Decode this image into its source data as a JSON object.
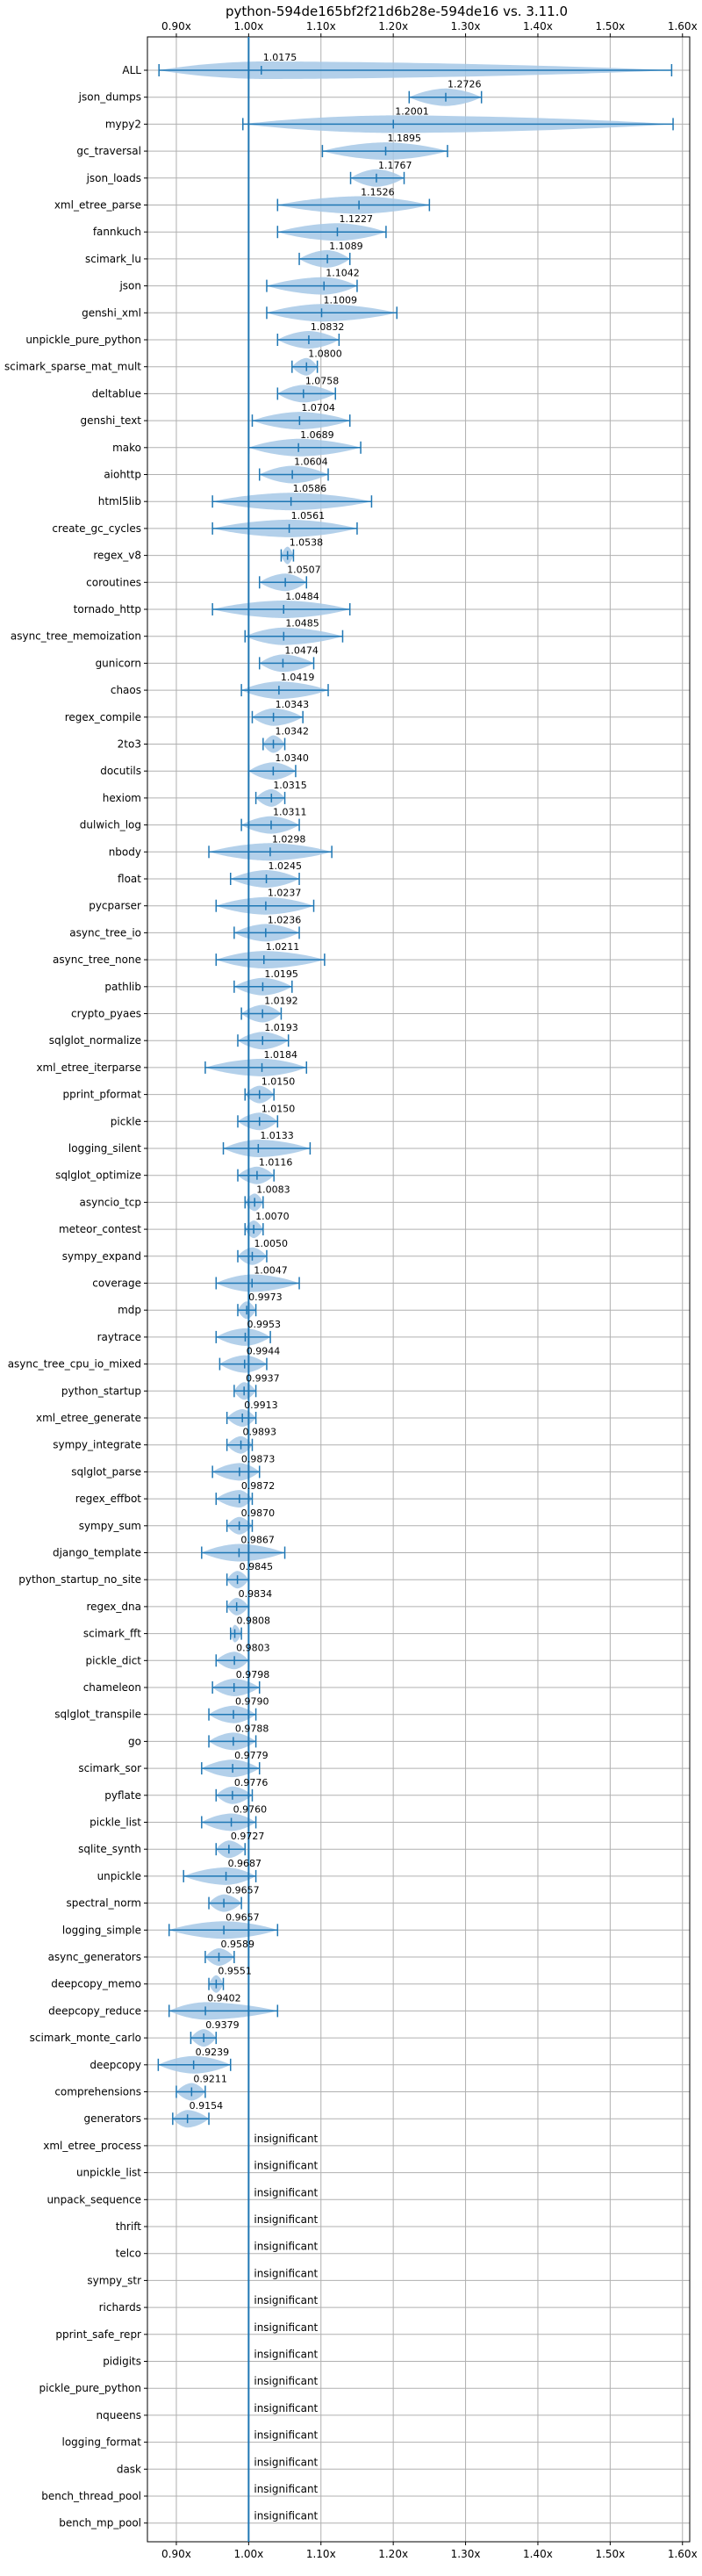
{
  "chart_data": {
    "type": "violin",
    "title": "python-594de165bf2f21d6b28e-594de16 vs. 3.11.0",
    "xlabel": "",
    "ylabel": "",
    "xlim": [
      0.86,
      1.61
    ],
    "x_ticks": [
      0.9,
      1.0,
      1.1,
      1.2,
      1.3,
      1.4,
      1.5,
      1.6
    ],
    "x_tick_labels": [
      "0.90x",
      "1.00x",
      "1.10x",
      "1.20x",
      "1.30x",
      "1.40x",
      "1.50x",
      "1.60x"
    ],
    "reference_line": 1.0,
    "grid": true,
    "colors": {
      "violin": "#a6c8e6",
      "line": "#1f77b4",
      "grid": "#b0b0b0",
      "text": "#000000"
    },
    "insignificant_label": "insignificant",
    "benchmarks": [
      {
        "name": "ALL",
        "mean": 1.0175,
        "label": "1.0175",
        "min": 0.876,
        "max": 1.585
      },
      {
        "name": "json_dumps",
        "mean": 1.2726,
        "label": "1.2726",
        "min": 1.222,
        "max": 1.322
      },
      {
        "name": "mypy2",
        "mean": 1.2001,
        "label": "1.2001",
        "min": 0.992,
        "max": 1.587
      },
      {
        "name": "gc_traversal",
        "mean": 1.1895,
        "label": "1.1895",
        "min": 1.102,
        "max": 1.275
      },
      {
        "name": "json_loads",
        "mean": 1.1767,
        "label": "1.1767",
        "min": 1.141,
        "max": 1.215
      },
      {
        "name": "xml_etree_parse",
        "mean": 1.1526,
        "label": "1.1526",
        "min": 1.04,
        "max": 1.25
      },
      {
        "name": "fannkuch",
        "mean": 1.1227,
        "label": "1.1227",
        "min": 1.04,
        "max": 1.19
      },
      {
        "name": "scimark_lu",
        "mean": 1.1089,
        "label": "1.1089",
        "min": 1.07,
        "max": 1.14
      },
      {
        "name": "json",
        "mean": 1.1042,
        "label": "1.1042",
        "min": 1.025,
        "max": 1.15
      },
      {
        "name": "genshi_xml",
        "mean": 1.1009,
        "label": "1.1009",
        "min": 1.025,
        "max": 1.205
      },
      {
        "name": "unpickle_pure_python",
        "mean": 1.0832,
        "label": "1.0832",
        "min": 1.04,
        "max": 1.125
      },
      {
        "name": "scimark_sparse_mat_mult",
        "mean": 1.08,
        "label": "1.0800",
        "min": 1.06,
        "max": 1.095
      },
      {
        "name": "deltablue",
        "mean": 1.0758,
        "label": "1.0758",
        "min": 1.04,
        "max": 1.12
      },
      {
        "name": "genshi_text",
        "mean": 1.0704,
        "label": "1.0704",
        "min": 1.005,
        "max": 1.14
      },
      {
        "name": "mako",
        "mean": 1.0689,
        "label": "1.0689",
        "min": 1.0,
        "max": 1.155
      },
      {
        "name": "aiohttp",
        "mean": 1.0604,
        "label": "1.0604",
        "min": 1.015,
        "max": 1.11
      },
      {
        "name": "html5lib",
        "mean": 1.0586,
        "label": "1.0586",
        "min": 0.95,
        "max": 1.17
      },
      {
        "name": "create_gc_cycles",
        "mean": 1.0561,
        "label": "1.0561",
        "min": 0.95,
        "max": 1.15
      },
      {
        "name": "regex_v8",
        "mean": 1.0538,
        "label": "1.0538",
        "min": 1.045,
        "max": 1.062
      },
      {
        "name": "coroutines",
        "mean": 1.0507,
        "label": "1.0507",
        "min": 1.015,
        "max": 1.08
      },
      {
        "name": "tornado_http",
        "mean": 1.0484,
        "label": "1.0484",
        "min": 0.95,
        "max": 1.14
      },
      {
        "name": "async_tree_memoization",
        "mean": 1.0485,
        "label": "1.0485",
        "min": 0.995,
        "max": 1.13
      },
      {
        "name": "gunicorn",
        "mean": 1.0474,
        "label": "1.0474",
        "min": 1.015,
        "max": 1.09
      },
      {
        "name": "chaos",
        "mean": 1.0419,
        "label": "1.0419",
        "min": 0.99,
        "max": 1.11
      },
      {
        "name": "regex_compile",
        "mean": 1.0343,
        "label": "1.0343",
        "min": 1.005,
        "max": 1.075
      },
      {
        "name": "2to3",
        "mean": 1.0342,
        "label": "1.0342",
        "min": 1.02,
        "max": 1.05
      },
      {
        "name": "docutils",
        "mean": 1.034,
        "label": "1.0340",
        "min": 1.0,
        "max": 1.065
      },
      {
        "name": "hexiom",
        "mean": 1.0315,
        "label": "1.0315",
        "min": 1.01,
        "max": 1.05
      },
      {
        "name": "dulwich_log",
        "mean": 1.0311,
        "label": "1.0311",
        "min": 0.99,
        "max": 1.07
      },
      {
        "name": "nbody",
        "mean": 1.0298,
        "label": "1.0298",
        "min": 0.945,
        "max": 1.115
      },
      {
        "name": "float",
        "mean": 1.0245,
        "label": "1.0245",
        "min": 0.975,
        "max": 1.07
      },
      {
        "name": "pycparser",
        "mean": 1.0237,
        "label": "1.0237",
        "min": 0.955,
        "max": 1.09
      },
      {
        "name": "async_tree_io",
        "mean": 1.0236,
        "label": "1.0236",
        "min": 0.98,
        "max": 1.07
      },
      {
        "name": "async_tree_none",
        "mean": 1.0211,
        "label": "1.0211",
        "min": 0.955,
        "max": 1.105
      },
      {
        "name": "pathlib",
        "mean": 1.0195,
        "label": "1.0195",
        "min": 0.98,
        "max": 1.06
      },
      {
        "name": "crypto_pyaes",
        "mean": 1.0192,
        "label": "1.0192",
        "min": 0.99,
        "max": 1.045
      },
      {
        "name": "sqlglot_normalize",
        "mean": 1.0193,
        "label": "1.0193",
        "min": 0.985,
        "max": 1.055
      },
      {
        "name": "xml_etree_iterparse",
        "mean": 1.0184,
        "label": "1.0184",
        "min": 0.94,
        "max": 1.08
      },
      {
        "name": "pprint_pformat",
        "mean": 1.015,
        "label": "1.0150",
        "min": 0.995,
        "max": 1.035
      },
      {
        "name": "pickle",
        "mean": 1.015,
        "label": "1.0150",
        "min": 0.985,
        "max": 1.04
      },
      {
        "name": "logging_silent",
        "mean": 1.0133,
        "label": "1.0133",
        "min": 0.965,
        "max": 1.085
      },
      {
        "name": "sqlglot_optimize",
        "mean": 1.0116,
        "label": "1.0116",
        "min": 0.985,
        "max": 1.035
      },
      {
        "name": "asyncio_tcp",
        "mean": 1.0083,
        "label": "1.0083",
        "min": 0.995,
        "max": 1.02
      },
      {
        "name": "meteor_contest",
        "mean": 1.007,
        "label": "1.0070",
        "min": 0.995,
        "max": 1.02
      },
      {
        "name": "sympy_expand",
        "mean": 1.005,
        "label": "1.0050",
        "min": 0.985,
        "max": 1.025
      },
      {
        "name": "coverage",
        "mean": 1.0047,
        "label": "1.0047",
        "min": 0.955,
        "max": 1.07
      },
      {
        "name": "mdp",
        "mean": 0.9973,
        "label": "0.9973",
        "min": 0.985,
        "max": 1.01
      },
      {
        "name": "raytrace",
        "mean": 0.9953,
        "label": "0.9953",
        "min": 0.955,
        "max": 1.03
      },
      {
        "name": "async_tree_cpu_io_mixed",
        "mean": 0.9944,
        "label": "0.9944",
        "min": 0.96,
        "max": 1.025
      },
      {
        "name": "python_startup",
        "mean": 0.9937,
        "label": "0.9937",
        "min": 0.98,
        "max": 1.01
      },
      {
        "name": "xml_etree_generate",
        "mean": 0.9913,
        "label": "0.9913",
        "min": 0.97,
        "max": 1.01
      },
      {
        "name": "sympy_integrate",
        "mean": 0.9893,
        "label": "0.9893",
        "min": 0.97,
        "max": 1.005
      },
      {
        "name": "sqlglot_parse",
        "mean": 0.9873,
        "label": "0.9873",
        "min": 0.95,
        "max": 1.015
      },
      {
        "name": "regex_effbot",
        "mean": 0.9872,
        "label": "0.9872",
        "min": 0.955,
        "max": 1.005
      },
      {
        "name": "sympy_sum",
        "mean": 0.987,
        "label": "0.9870",
        "min": 0.97,
        "max": 1.005
      },
      {
        "name": "django_template",
        "mean": 0.9867,
        "label": "0.9867",
        "min": 0.935,
        "max": 1.05
      },
      {
        "name": "python_startup_no_site",
        "mean": 0.9845,
        "label": "0.9845",
        "min": 0.97,
        "max": 1.0
      },
      {
        "name": "regex_dna",
        "mean": 0.9834,
        "label": "0.9834",
        "min": 0.97,
        "max": 1.0
      },
      {
        "name": "scimark_fft",
        "mean": 0.9808,
        "label": "0.9808",
        "min": 0.975,
        "max": 0.99
      },
      {
        "name": "pickle_dict",
        "mean": 0.9803,
        "label": "0.9803",
        "min": 0.955,
        "max": 1.0
      },
      {
        "name": "chameleon",
        "mean": 0.9798,
        "label": "0.9798",
        "min": 0.95,
        "max": 1.015
      },
      {
        "name": "sqlglot_transpile",
        "mean": 0.979,
        "label": "0.9790",
        "min": 0.945,
        "max": 1.01
      },
      {
        "name": "go",
        "mean": 0.9788,
        "label": "0.9788",
        "min": 0.945,
        "max": 1.01
      },
      {
        "name": "scimark_sor",
        "mean": 0.9779,
        "label": "0.9779",
        "min": 0.935,
        "max": 1.015
      },
      {
        "name": "pyflate",
        "mean": 0.9776,
        "label": "0.9776",
        "min": 0.955,
        "max": 1.005
      },
      {
        "name": "pickle_list",
        "mean": 0.976,
        "label": "0.9760",
        "min": 0.935,
        "max": 1.01
      },
      {
        "name": "sqlite_synth",
        "mean": 0.9727,
        "label": "0.9727",
        "min": 0.955,
        "max": 0.995
      },
      {
        "name": "unpickle",
        "mean": 0.9687,
        "label": "0.9687",
        "min": 0.91,
        "max": 1.01
      },
      {
        "name": "spectral_norm",
        "mean": 0.9657,
        "label": "0.9657",
        "min": 0.945,
        "max": 0.99
      },
      {
        "name": "logging_simple",
        "mean": 0.9657,
        "label": "0.9657",
        "min": 0.89,
        "max": 1.04
      },
      {
        "name": "async_generators",
        "mean": 0.9589,
        "label": "0.9589",
        "min": 0.94,
        "max": 0.98
      },
      {
        "name": "deepcopy_memo",
        "mean": 0.9551,
        "label": "0.9551",
        "min": 0.945,
        "max": 0.965
      },
      {
        "name": "deepcopy_reduce",
        "mean": 0.9402,
        "label": "0.9402",
        "min": 0.89,
        "max": 1.04
      },
      {
        "name": "scimark_monte_carlo",
        "mean": 0.9379,
        "label": "0.9379",
        "min": 0.92,
        "max": 0.955
      },
      {
        "name": "deepcopy",
        "mean": 0.9239,
        "label": "0.9239",
        "min": 0.875,
        "max": 0.975
      },
      {
        "name": "comprehensions",
        "mean": 0.9211,
        "label": "0.9211",
        "min": 0.9,
        "max": 0.94
      },
      {
        "name": "generators",
        "mean": 0.9154,
        "label": "0.9154",
        "min": 0.895,
        "max": 0.945
      },
      {
        "name": "xml_etree_process",
        "insignificant": true
      },
      {
        "name": "unpickle_list",
        "insignificant": true
      },
      {
        "name": "unpack_sequence",
        "insignificant": true
      },
      {
        "name": "thrift",
        "insignificant": true
      },
      {
        "name": "telco",
        "insignificant": true
      },
      {
        "name": "sympy_str",
        "insignificant": true
      },
      {
        "name": "richards",
        "insignificant": true
      },
      {
        "name": "pprint_safe_repr",
        "insignificant": true
      },
      {
        "name": "pidigits",
        "insignificant": true
      },
      {
        "name": "pickle_pure_python",
        "insignificant": true
      },
      {
        "name": "nqueens",
        "insignificant": true
      },
      {
        "name": "logging_format",
        "insignificant": true
      },
      {
        "name": "dask",
        "insignificant": true
      },
      {
        "name": "bench_thread_pool",
        "insignificant": true
      },
      {
        "name": "bench_mp_pool",
        "insignificant": true
      }
    ]
  }
}
